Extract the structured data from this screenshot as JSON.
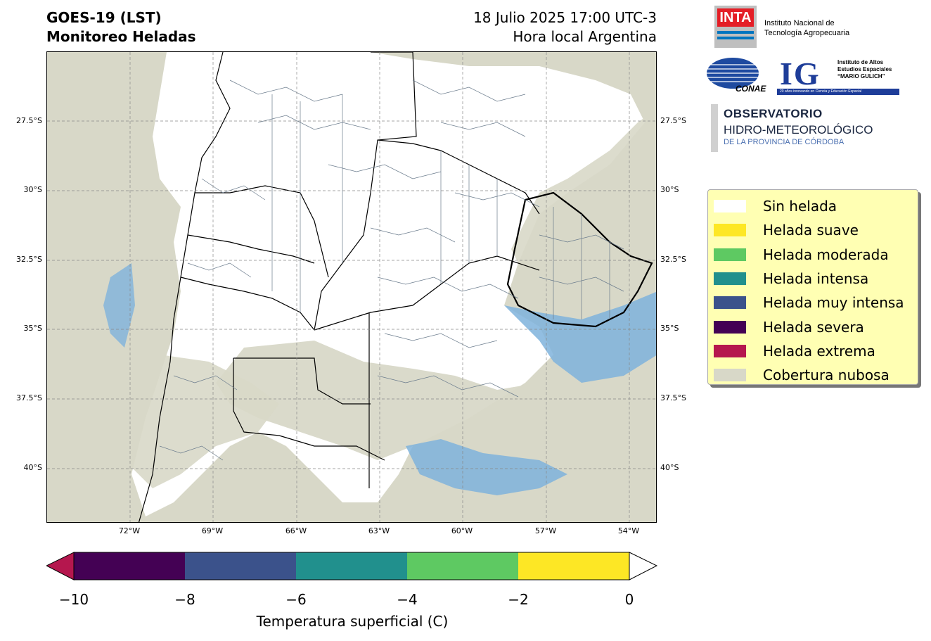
{
  "header": {
    "title_line1": "GOES-19 (LST)",
    "title_line2": "Monitoreo Heladas",
    "date_line1": "18 Julio 2025 17:00 UTC-3",
    "date_line2": "Hora local Argentina"
  },
  "map": {
    "lat_labels": [
      "27.5°S",
      "30°S",
      "32.5°S",
      "35°S",
      "37.5°S",
      "40°S"
    ],
    "lon_labels": [
      "72°W",
      "69°W",
      "66°W",
      "63°W",
      "60°W",
      "57°W",
      "54°W"
    ],
    "gridlines": true,
    "background_color": "#d8d8c8",
    "no_frost_color": "#ffffff",
    "water_color": "#7fb3dc"
  },
  "colorbar": {
    "label": "Temperatura superficial (C)",
    "ticks": [
      "−10",
      "−8",
      "−6",
      "−4",
      "−2",
      "0"
    ],
    "segments": [
      {
        "from": -10,
        "to": -8,
        "color": "#440154"
      },
      {
        "from": -8,
        "to": -6,
        "color": "#3b528b"
      },
      {
        "from": -6,
        "to": -4,
        "color": "#21908d"
      },
      {
        "from": -4,
        "to": -2,
        "color": "#5ec962"
      },
      {
        "from": -2,
        "to": 0,
        "color": "#fde725"
      }
    ],
    "under_color": "#b5174e",
    "over_color": "#ffffff"
  },
  "legend": {
    "items": [
      {
        "label": "Sin helada",
        "color": "#ffffff"
      },
      {
        "label": "Helada suave",
        "color": "#fde725"
      },
      {
        "label": "Helada moderada",
        "color": "#5ec962"
      },
      {
        "label": "Helada intensa",
        "color": "#21908d"
      },
      {
        "label": "Helada muy intensa",
        "color": "#3b528b"
      },
      {
        "label": "Helada severa",
        "color": "#440154"
      },
      {
        "label": "Helada extrema",
        "color": "#b5174e"
      },
      {
        "label": "Cobertura nubosa",
        "color": "#d8d8c8"
      }
    ]
  },
  "logos": {
    "inta_word": "INTA",
    "inta_name_line1": "Instituto Nacional de",
    "inta_name_line2": "Tecnología Agropecuaria",
    "conae_word": "CONAE",
    "ig_letters": "IG",
    "ig_line1": "Instituto de Altos",
    "ig_line2": "Estudios Espaciales",
    "ig_line3": "“MARIO GULICH”",
    "ig_bar": "20 años innovando en Ciencia y Educación Espacial",
    "ohm_line1": "OBSERVATORIO",
    "ohm_line2": "HIDRO-METEOROLÓGICO",
    "ohm_line3": "DE LA PROVINCIA DE CÓRDOBA"
  }
}
